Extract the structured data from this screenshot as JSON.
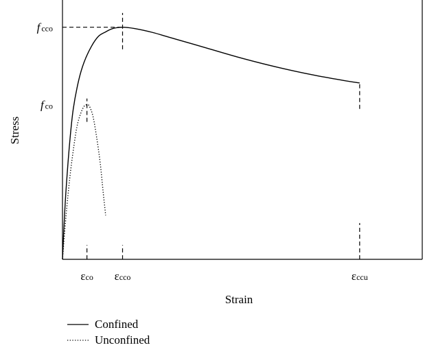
{
  "chart_data": {
    "type": "line",
    "title": "",
    "xlabel": "Strain",
    "ylabel": "Stress",
    "xlim": [
      0,
      1
    ],
    "ylim": [
      0,
      1
    ],
    "grid": false,
    "legend_position": "bottom-left",
    "x_ticks": [
      {
        "base": "ε",
        "sub": "co",
        "value": 0.068
      },
      {
        "base": "ε",
        "sub": "cco",
        "value": 0.167
      },
      {
        "base": "ε",
        "sub": "ccu",
        "value": 0.826
      }
    ],
    "y_ticks": [
      {
        "base": "f",
        "sub": "cco",
        "value": 0.895
      },
      {
        "base": "f",
        "sub": "co",
        "value": 0.596
      }
    ],
    "series": [
      {
        "name": "Confined",
        "style": "solid",
        "color": "#000000",
        "points": [
          [
            0,
            0
          ],
          [
            0.005,
            0.15
          ],
          [
            0.01,
            0.27
          ],
          [
            0.02,
            0.45
          ],
          [
            0.03,
            0.58
          ],
          [
            0.045,
            0.69
          ],
          [
            0.06,
            0.76
          ],
          [
            0.08,
            0.82
          ],
          [
            0.1,
            0.86
          ],
          [
            0.12,
            0.877
          ],
          [
            0.14,
            0.89
          ],
          [
            0.167,
            0.895
          ],
          [
            0.2,
            0.89
          ],
          [
            0.25,
            0.875
          ],
          [
            0.3,
            0.855
          ],
          [
            0.4,
            0.815
          ],
          [
            0.5,
            0.775
          ],
          [
            0.6,
            0.74
          ],
          [
            0.7,
            0.71
          ],
          [
            0.78,
            0.69
          ],
          [
            0.826,
            0.68
          ]
        ]
      },
      {
        "name": "Unconfined",
        "style": "dotted",
        "color": "#000000",
        "points": [
          [
            0,
            0
          ],
          [
            0.01,
            0.17
          ],
          [
            0.02,
            0.31
          ],
          [
            0.03,
            0.42
          ],
          [
            0.04,
            0.51
          ],
          [
            0.05,
            0.56
          ],
          [
            0.06,
            0.59
          ],
          [
            0.068,
            0.596
          ],
          [
            0.075,
            0.59
          ],
          [
            0.085,
            0.55
          ],
          [
            0.095,
            0.47
          ],
          [
            0.105,
            0.37
          ],
          [
            0.113,
            0.26
          ],
          [
            0.12,
            0.17
          ]
        ]
      }
    ],
    "reference_lines": [
      {
        "kind": "h",
        "y": 0.895,
        "x_from": 0,
        "x_to": 0.167
      },
      {
        "kind": "v",
        "x": 0.167,
        "y_from": 0.81,
        "y_to": 0.95
      },
      {
        "kind": "v",
        "x": 0.068,
        "y_from": 0.53,
        "y_to": 0.62
      },
      {
        "kind": "v",
        "x": 0.826,
        "y_from": 0.58,
        "y_to": 0.68
      },
      {
        "kind": "v",
        "x": 0.068,
        "y_from": 0,
        "y_to": 0.055
      },
      {
        "kind": "v",
        "x": 0.167,
        "y_from": 0,
        "y_to": 0.055
      },
      {
        "kind": "v",
        "x": 0.826,
        "y_from": 0,
        "y_to": 0.14
      }
    ]
  }
}
